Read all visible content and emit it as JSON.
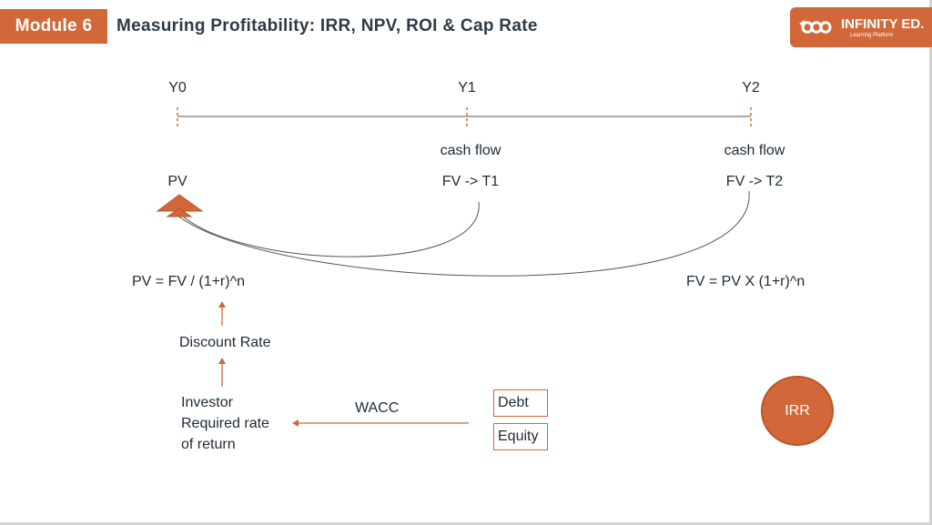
{
  "header": {
    "module_label": "Module 6",
    "title": "Measuring Profitability: IRR, NPV, ROI & Cap Rate",
    "logo_name": "INFINITY ED.",
    "logo_tagline": "Learning Platform"
  },
  "timeline": {
    "periods": [
      "Y0",
      "Y1",
      "Y2"
    ],
    "y1_caption": "cash flow",
    "y2_caption": "cash flow",
    "pv_label": "PV",
    "fv_t1_label": "FV -> T1",
    "fv_t2_label": "FV -> T2"
  },
  "formulas": {
    "pv_formula": "PV = FV / (1+r)^n",
    "fv_formula": "FV = PV X (1+r)^n"
  },
  "flow": {
    "discount_rate": "Discount Rate",
    "investor_line1": "Investor",
    "investor_line2": "Required rate",
    "investor_line3": "of return",
    "wacc": "WACC",
    "debt": "Debt",
    "equity": "Equity",
    "irr": "IRR"
  },
  "colors": {
    "accent": "#d2683a",
    "text": "#1f2a36"
  }
}
